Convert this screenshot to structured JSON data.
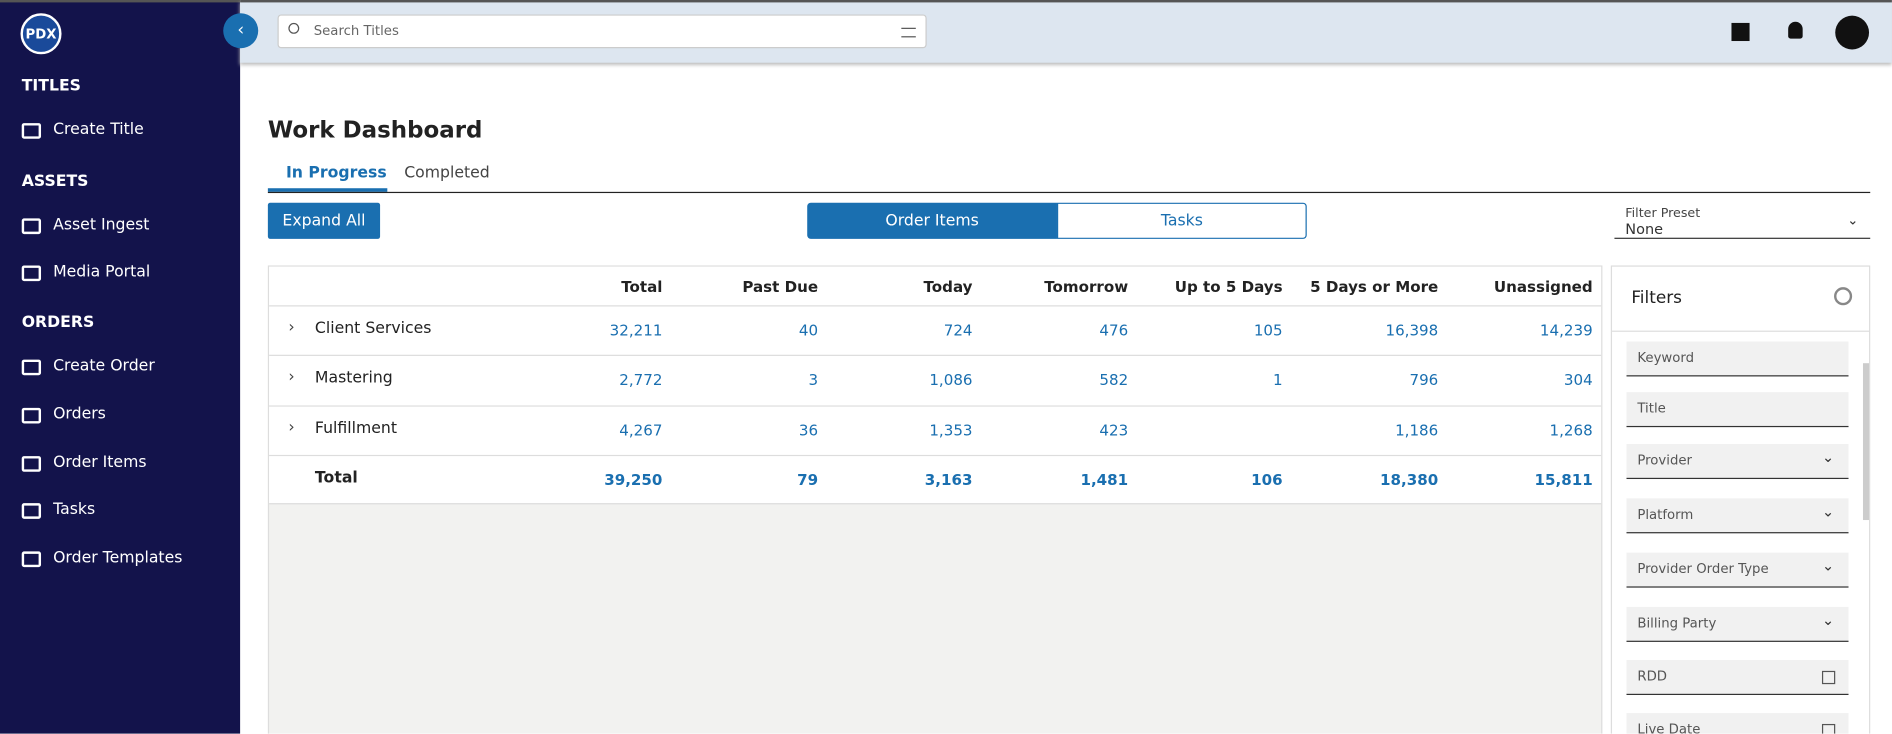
{
  "logo": "PDX",
  "sidebar": [
    {
      "heading": "TITLES",
      "items": [
        "Create Title"
      ]
    },
    {
      "heading": "ASSETS",
      "items": [
        "Asset Ingest",
        "Media Portal"
      ]
    },
    {
      "heading": "ORDERS",
      "items": [
        "Create Order",
        "Orders",
        "Order Items",
        "Tasks",
        "Order Templates"
      ]
    }
  ],
  "search": {
    "placeholder": "Search Titles"
  },
  "page": {
    "title": "Work Dashboard",
    "tabs": [
      "In Progress",
      "Completed"
    ],
    "expand_button": "Expand All",
    "segments": [
      "Order Items",
      "Tasks"
    ],
    "filter_preset": {
      "label": "Filter Preset",
      "value": "None"
    }
  },
  "table": {
    "headers": [
      "Total",
      "Past Due",
      "Today",
      "Tomorrow",
      "Up to 5 Days",
      "5 Days or More",
      "Unassigned"
    ],
    "rows": [
      {
        "label": "Client Services",
        "cells": [
          "32,211",
          "40",
          "724",
          "476",
          "105",
          "16,398",
          "14,239"
        ]
      },
      {
        "label": "Mastering",
        "cells": [
          "2,772",
          "3",
          "1,086",
          "582",
          "1",
          "796",
          "304"
        ]
      },
      {
        "label": "Fulfillment",
        "cells": [
          "4,267",
          "36",
          "1,353",
          "423",
          null,
          "1,186",
          "1,268"
        ]
      }
    ],
    "total": {
      "label": "Total",
      "cells": [
        "39,250",
        "79",
        "3,163",
        "1,481",
        "106",
        "18,380",
        "15,811"
      ]
    }
  },
  "filters": {
    "title": "Filters",
    "fields": [
      {
        "label": "Keyword",
        "kind": "text"
      },
      {
        "label": "Title",
        "kind": "text"
      },
      {
        "label": "Provider",
        "kind": "select"
      },
      {
        "label": "Platform",
        "kind": "select"
      },
      {
        "label": "Provider Order Type",
        "kind": "select"
      },
      {
        "label": "Billing Party",
        "kind": "select"
      },
      {
        "label": "RDD",
        "kind": "date"
      },
      {
        "label": "Live Date",
        "kind": "date"
      }
    ]
  }
}
